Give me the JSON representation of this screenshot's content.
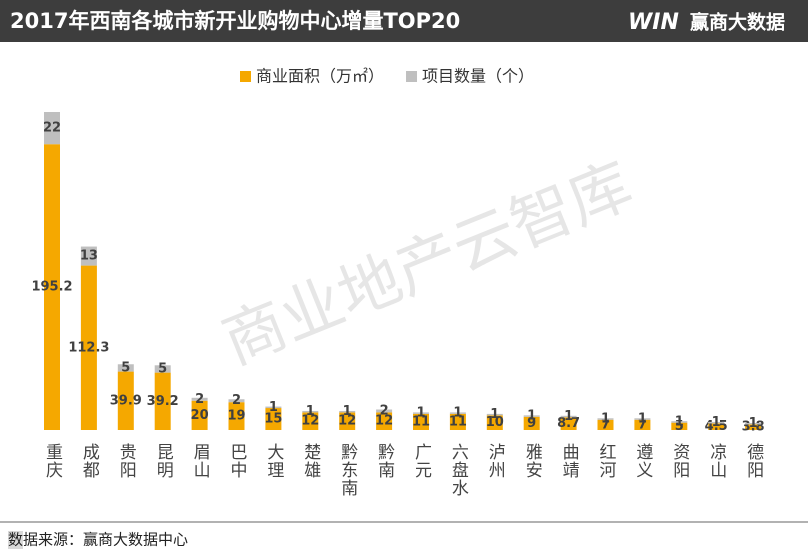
{
  "chart_data": {
    "type": "stacked_bar",
    "title": "2017年西南各城市新开业购物中心增量TOP20",
    "categories": [
      "重庆",
      "成都",
      "贵阳",
      "昆明",
      "眉山",
      "巴中",
      "大理",
      "楚雄",
      "黔东南",
      "黔南",
      "广元",
      "六盘水",
      "泸州",
      "雅安",
      "曲靖",
      "红河",
      "遵义",
      "资阳",
      "凉山",
      "德阳"
    ],
    "series": [
      {
        "name": "商业面积（万㎡）",
        "color": "#f5a800",
        "values": [
          195.2,
          112.3,
          39.9,
          39.2,
          20,
          19,
          15,
          12,
          12,
          12,
          11,
          11,
          10,
          9,
          8.7,
          7,
          7,
          5,
          4.5,
          3.8
        ]
      },
      {
        "name": "项目数量（个）",
        "color": "#bfbfbf",
        "values": [
          22,
          13,
          5,
          5,
          2,
          2,
          1,
          1,
          1,
          2,
          1,
          1,
          1,
          1,
          1,
          1,
          1,
          1,
          1,
          1
        ]
      }
    ]
  },
  "logo": {
    "mark": "WIN",
    "text": "赢商大数据"
  },
  "watermark": "商业地产云智库",
  "source": "数据来源：赢商大数据中心"
}
